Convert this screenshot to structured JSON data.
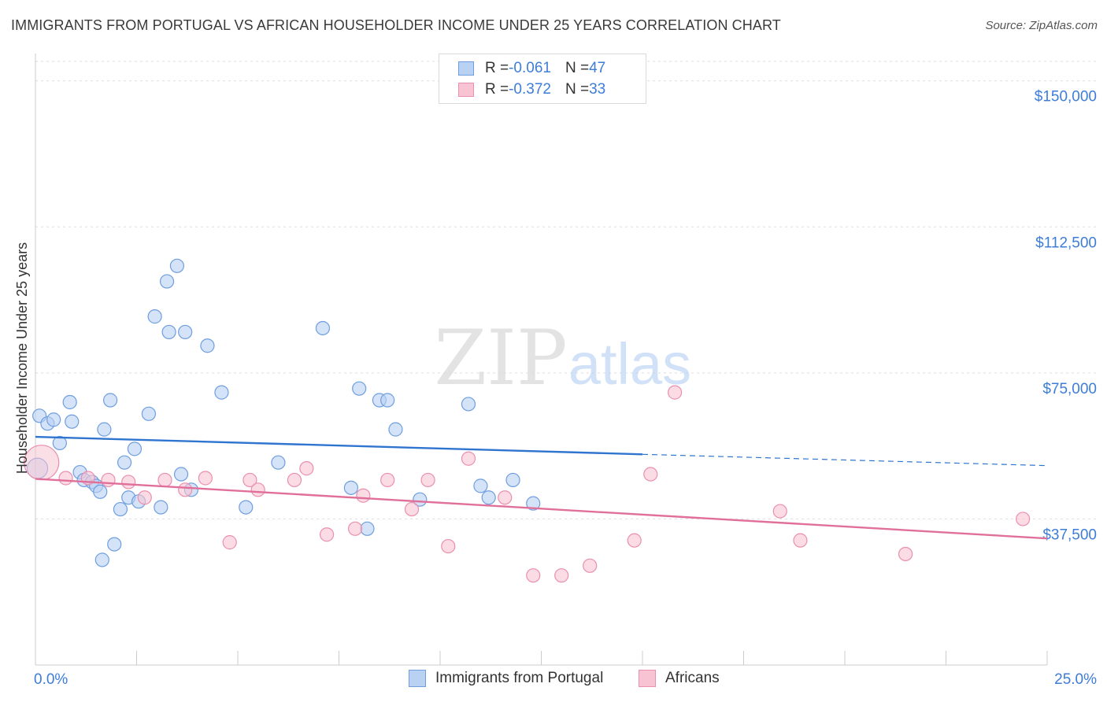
{
  "header": {
    "title": "IMMIGRANTS FROM PORTUGAL VS AFRICAN HOUSEHOLDER INCOME UNDER 25 YEARS CORRELATION CHART",
    "source": "Source: ZipAtlas.com"
  },
  "watermark": {
    "zip": "ZIP",
    "atlas": "atlas"
  },
  "legend_top": {
    "rows": [
      {
        "r_label": "R = ",
        "r_value": "-0.061",
        "n_label": "N = ",
        "n_value": "47"
      },
      {
        "r_label": "R = ",
        "r_value": "-0.372",
        "n_label": "N = ",
        "n_value": "33"
      }
    ]
  },
  "chart_data": {
    "type": "scatter",
    "xlabel": "",
    "ylabel": "Householder Income Under 25 years",
    "xlim": [
      0,
      25
    ],
    "ylim": [
      0,
      155000
    ],
    "x_tick_labels": [
      "0.0%",
      "25.0%"
    ],
    "y_ticks": [
      37500,
      75000,
      112500,
      150000
    ],
    "y_tick_labels": [
      "$37,500",
      "$75,000",
      "$112,500",
      "$150,000"
    ],
    "grid": true,
    "legend_position": "bottom",
    "colors": {
      "portugal_fill": "#b9d1f3",
      "portugal_stroke": "#6e9ee0",
      "portugal_line": "#2f74cf",
      "africans_fill": "#f8c4d4",
      "africans_stroke": "#ea8faf",
      "africans_line": "#e0709a",
      "tick_label": "#3d7dd8"
    },
    "series": [
      {
        "name": "Immigrants from Portugal",
        "r": -0.061,
        "n": 47,
        "points": [
          [
            0.05,
            50500
          ],
          [
            0.1,
            64000
          ],
          [
            0.3,
            62000
          ],
          [
            0.45,
            63000
          ],
          [
            0.6,
            57000
          ],
          [
            0.85,
            67500
          ],
          [
            0.9,
            62500
          ],
          [
            1.1,
            49500
          ],
          [
            1.2,
            47500
          ],
          [
            1.4,
            47000
          ],
          [
            1.5,
            46000
          ],
          [
            1.6,
            44500
          ],
          [
            1.65,
            27000
          ],
          [
            1.7,
            60500
          ],
          [
            1.85,
            68000
          ],
          [
            1.95,
            31000
          ],
          [
            2.1,
            40000
          ],
          [
            2.2,
            52000
          ],
          [
            2.3,
            43000
          ],
          [
            2.45,
            55500
          ],
          [
            2.55,
            42000
          ],
          [
            2.8,
            64500
          ],
          [
            2.95,
            89500
          ],
          [
            3.1,
            40500
          ],
          [
            3.25,
            98500
          ],
          [
            3.3,
            85500
          ],
          [
            3.5,
            102500
          ],
          [
            3.6,
            49000
          ],
          [
            3.7,
            85500
          ],
          [
            3.85,
            45000
          ],
          [
            4.25,
            82000
          ],
          [
            4.6,
            70000
          ],
          [
            5.2,
            40500
          ],
          [
            6.0,
            52000
          ],
          [
            7.1,
            86500
          ],
          [
            7.8,
            45500
          ],
          [
            8.0,
            71000
          ],
          [
            8.2,
            35000
          ],
          [
            8.5,
            68000
          ],
          [
            8.7,
            68000
          ],
          [
            8.9,
            60500
          ],
          [
            9.5,
            42500
          ],
          [
            10.7,
            67000
          ],
          [
            11.0,
            46000
          ],
          [
            11.2,
            43000
          ],
          [
            11.8,
            47500
          ],
          [
            12.3,
            41500
          ]
        ]
      },
      {
        "name": "Africans",
        "r": -0.372,
        "n": 33,
        "points": [
          [
            0.15,
            52000
          ],
          [
            0.75,
            48000
          ],
          [
            1.3,
            48000
          ],
          [
            1.8,
            47500
          ],
          [
            2.3,
            47000
          ],
          [
            2.7,
            43000
          ],
          [
            3.2,
            47500
          ],
          [
            3.7,
            45000
          ],
          [
            4.2,
            48000
          ],
          [
            4.8,
            31500
          ],
          [
            5.3,
            47500
          ],
          [
            5.5,
            45000
          ],
          [
            6.4,
            47500
          ],
          [
            6.7,
            50500
          ],
          [
            7.2,
            33500
          ],
          [
            7.9,
            35000
          ],
          [
            8.1,
            43500
          ],
          [
            8.7,
            47500
          ],
          [
            9.3,
            40000
          ],
          [
            9.7,
            47500
          ],
          [
            10.2,
            30500
          ],
          [
            10.7,
            53000
          ],
          [
            11.6,
            43000
          ],
          [
            12.3,
            23000
          ],
          [
            13.0,
            23000
          ],
          [
            13.7,
            25500
          ],
          [
            14.8,
            32000
          ],
          [
            15.2,
            49000
          ],
          [
            15.8,
            70000
          ],
          [
            18.4,
            39500
          ],
          [
            18.9,
            32000
          ],
          [
            21.5,
            28500
          ],
          [
            24.4,
            37500
          ]
        ]
      }
    ],
    "trendlines": [
      {
        "series": "Immigrants from Portugal",
        "x": [
          0,
          15,
          25
        ],
        "y": [
          58600,
          54100,
          51200
        ],
        "dashed_from": 15
      },
      {
        "series": "Africans",
        "x": [
          0,
          25
        ],
        "y": [
          47800,
          32500
        ]
      }
    ]
  },
  "bottom_legend": {
    "items": [
      {
        "label": "Immigrants from Portugal"
      },
      {
        "label": "Africans"
      }
    ]
  }
}
